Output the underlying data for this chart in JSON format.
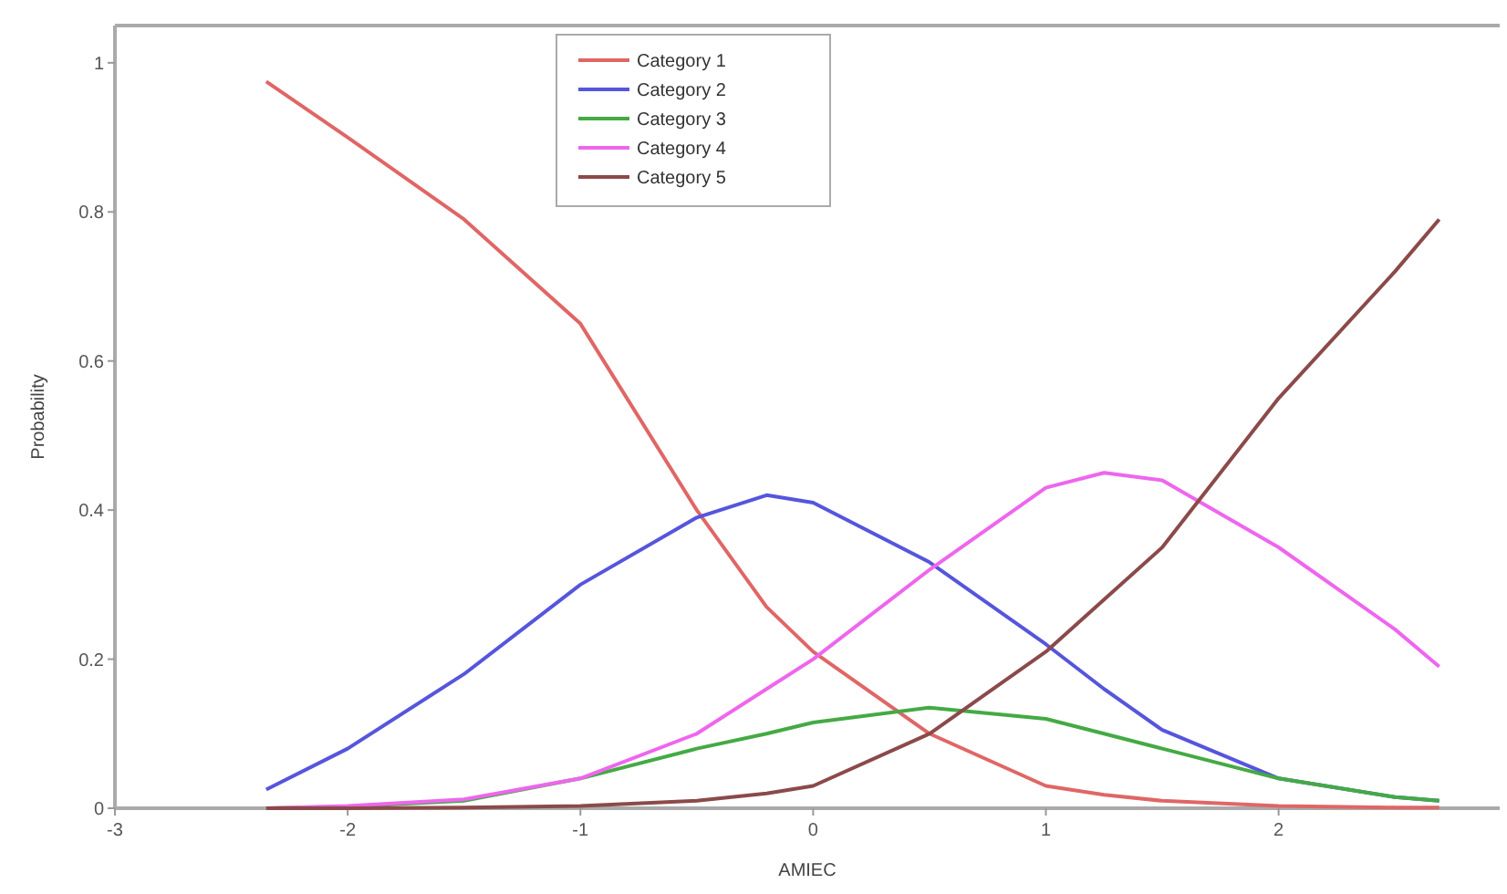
{
  "chart_data": {
    "type": "line",
    "xlabel": "AMIEC",
    "ylabel": "Probability",
    "xlim": [
      -3,
      2.95
    ],
    "xticks": [
      -3,
      -2,
      -1,
      0,
      1,
      2
    ],
    "ylim": [
      0,
      1.05
    ],
    "yticks": [
      0,
      0.2,
      0.4,
      0.6,
      0.8,
      1
    ],
    "x": [
      -2.35,
      -2,
      -1.5,
      -1,
      -0.5,
      -0.2,
      0,
      0.5,
      1,
      1.25,
      1.5,
      2,
      2.5,
      2.69
    ],
    "legend": "top",
    "grid": false,
    "marker": "none",
    "line_style": "solid",
    "series": [
      {
        "name": "Category 1",
        "color": "#e06666",
        "values": [
          0.975,
          0.9,
          0.79,
          0.65,
          0.4,
          0.27,
          0.21,
          0.1,
          0.03,
          0.018,
          0.01,
          0.003,
          0.001,
          0.001
        ]
      },
      {
        "name": "Category 2",
        "color": "#5555dd",
        "values": [
          0.025,
          0.08,
          0.18,
          0.3,
          0.39,
          0.42,
          0.41,
          0.33,
          0.22,
          0.16,
          0.105,
          0.04,
          0.015,
          0.01
        ]
      },
      {
        "name": "Category 3",
        "color": "#44aa44",
        "values": [
          0,
          0.002,
          0.01,
          0.04,
          0.08,
          0.1,
          0.115,
          0.135,
          0.12,
          0.1,
          0.08,
          0.04,
          0.015,
          0.01
        ]
      },
      {
        "name": "Category 4",
        "color": "#ee66ee",
        "values": [
          0,
          0.003,
          0.012,
          0.04,
          0.1,
          0.16,
          0.2,
          0.32,
          0.43,
          0.45,
          0.44,
          0.35,
          0.24,
          0.19
        ]
      },
      {
        "name": "Category 5",
        "color": "#8b4a4a",
        "values": [
          0,
          0,
          0.001,
          0.003,
          0.01,
          0.02,
          0.03,
          0.1,
          0.21,
          0.28,
          0.35,
          0.55,
          0.72,
          0.79
        ]
      }
    ]
  }
}
